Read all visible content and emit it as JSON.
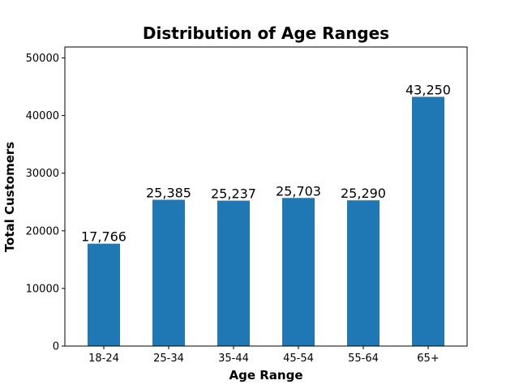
{
  "chart_data": {
    "type": "bar",
    "title": "Distribution of Age Ranges",
    "xlabel": "Age Range",
    "ylabel": "Total Customers",
    "categories": [
      "18-24",
      "25-34",
      "35-44",
      "45-54",
      "55-64",
      "65+"
    ],
    "values": [
      17766,
      25385,
      25237,
      25703,
      25290,
      43250
    ],
    "data_labels": [
      "17,766",
      "25,385",
      "25,237",
      "25,703",
      "25,290",
      "43,250"
    ],
    "ylim": [
      0,
      51900
    ],
    "yticks": [
      0,
      10000,
      20000,
      30000,
      40000,
      50000
    ],
    "ytick_labels": [
      "0",
      "10000",
      "20000",
      "30000",
      "40000",
      "50000"
    ],
    "grid": false,
    "legend": "none",
    "bar_color": "#1f77b4"
  }
}
